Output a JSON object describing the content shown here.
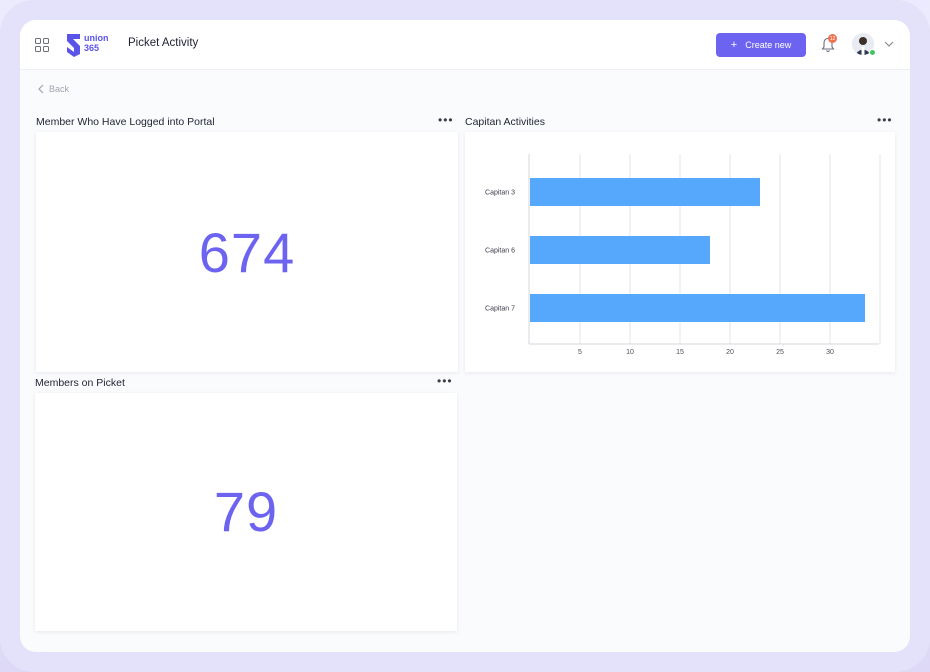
{
  "header": {
    "logo_text_line1": "union",
    "logo_text_line2": "365",
    "page_title": "Picket Activity",
    "create_label": "Create new",
    "notification_count": "12"
  },
  "nav": {
    "back_label": "Back"
  },
  "cards": {
    "portal": {
      "title": "Member Who Have Logged into Portal",
      "value": "674"
    },
    "activities": {
      "title": "Capitan Activities"
    },
    "picket": {
      "title": "Members on Picket",
      "value": "79"
    }
  },
  "colors": {
    "accent": "#6c63f0",
    "bar": "#55a8fc",
    "badge": "#f0714f",
    "status": "#43c463"
  },
  "chart_data": {
    "type": "bar",
    "orientation": "horizontal",
    "title": "Capitan Activities",
    "categories": [
      "Capitan 3",
      "Capitan 6",
      "Capitan 7"
    ],
    "values": [
      23,
      18,
      33.5
    ],
    "xticks": [
      5,
      10,
      15,
      20,
      25,
      30
    ],
    "xlim": [
      0,
      35
    ],
    "grid": "vertical"
  }
}
